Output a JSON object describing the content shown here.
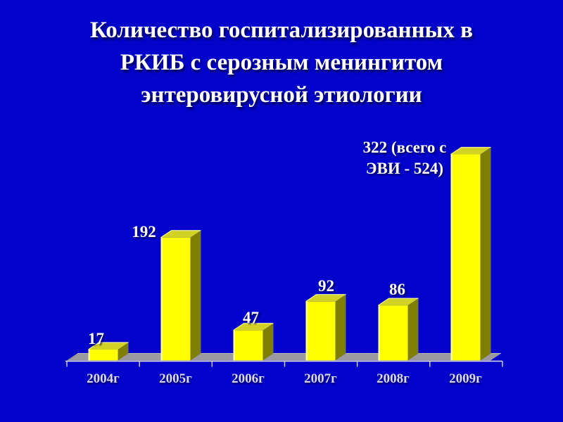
{
  "slide": {
    "title_lines": [
      "Количество госпитализированных в",
      "РКИБ с серозным менингитом",
      "энтеровирусной этиологии"
    ]
  },
  "chart_data": {
    "type": "bar",
    "title": "Количество госпитализированных в РКИБ с серозным менингитом энтеровирусной этиологии",
    "categories": [
      "2004г",
      "2005г",
      "2006г",
      "2007г",
      "2008г",
      "2009г"
    ],
    "values": [
      17,
      192,
      47,
      92,
      86,
      322
    ],
    "bar_value_labels": [
      "17",
      "192",
      "47",
      "92",
      "86",
      ""
    ],
    "annotation_lines": [
      "322 (всего с",
      "ЭВИ - 524)"
    ],
    "xlabel": "",
    "ylabel": "",
    "ylim": [
      0,
      330
    ],
    "legend": false,
    "grid": false,
    "style": "3d-bars",
    "colors": {
      "background": "#0303cb",
      "bar_front": "#ffff00",
      "bar_top": "#d2d226",
      "bar_side": "#7f7f05",
      "bar_highlight": "#ffffb0",
      "bar_top_edge": "#eeee99",
      "floor": "#9a9aa0",
      "floor_edge": "#b4b4bc",
      "axis": "#e0e0e8",
      "tick": "#c8c8d0",
      "title_text": "#ffffff",
      "value_text": "#fbfbff",
      "category_text": "#d9d9f2"
    }
  }
}
